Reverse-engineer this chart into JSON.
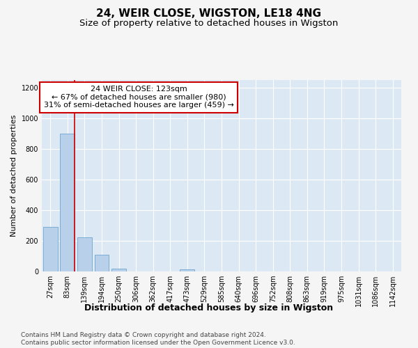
{
  "title": "24, WEIR CLOSE, WIGSTON, LE18 4NG",
  "subtitle": "Size of property relative to detached houses in Wigston",
  "xlabel": "Distribution of detached houses by size in Wigston",
  "ylabel": "Number of detached properties",
  "bar_labels": [
    "27sqm",
    "83sqm",
    "139sqm",
    "194sqm",
    "250sqm",
    "306sqm",
    "362sqm",
    "417sqm",
    "473sqm",
    "529sqm",
    "585sqm",
    "640sqm",
    "696sqm",
    "752sqm",
    "808sqm",
    "863sqm",
    "919sqm",
    "975sqm",
    "1031sqm",
    "1086sqm",
    "1142sqm"
  ],
  "bar_values": [
    290,
    900,
    225,
    110,
    20,
    0,
    0,
    0,
    15,
    0,
    0,
    0,
    0,
    0,
    0,
    0,
    0,
    0,
    0,
    0,
    0
  ],
  "bar_color": "#b8d0ea",
  "bar_edgecolor": "#7aadd4",
  "background_color": "#dce8f4",
  "grid_color": "#ffffff",
  "vline_color": "#cc0000",
  "vline_pos": 1.43,
  "annotation_text": "24 WEIR CLOSE: 123sqm\n← 67% of detached houses are smaller (980)\n31% of semi-detached houses are larger (459) →",
  "annotation_box_color": "#ffffff",
  "annotation_box_edgecolor": "#cc0000",
  "ylim": [
    0,
    1250
  ],
  "yticks": [
    0,
    200,
    400,
    600,
    800,
    1000,
    1200
  ],
  "footer_text": "Contains HM Land Registry data © Crown copyright and database right 2024.\nContains public sector information licensed under the Open Government Licence v3.0.",
  "title_fontsize": 11,
  "subtitle_fontsize": 9.5,
  "xlabel_fontsize": 9,
  "ylabel_fontsize": 8,
  "tick_fontsize": 7,
  "annotation_fontsize": 8,
  "footer_fontsize": 6.5
}
